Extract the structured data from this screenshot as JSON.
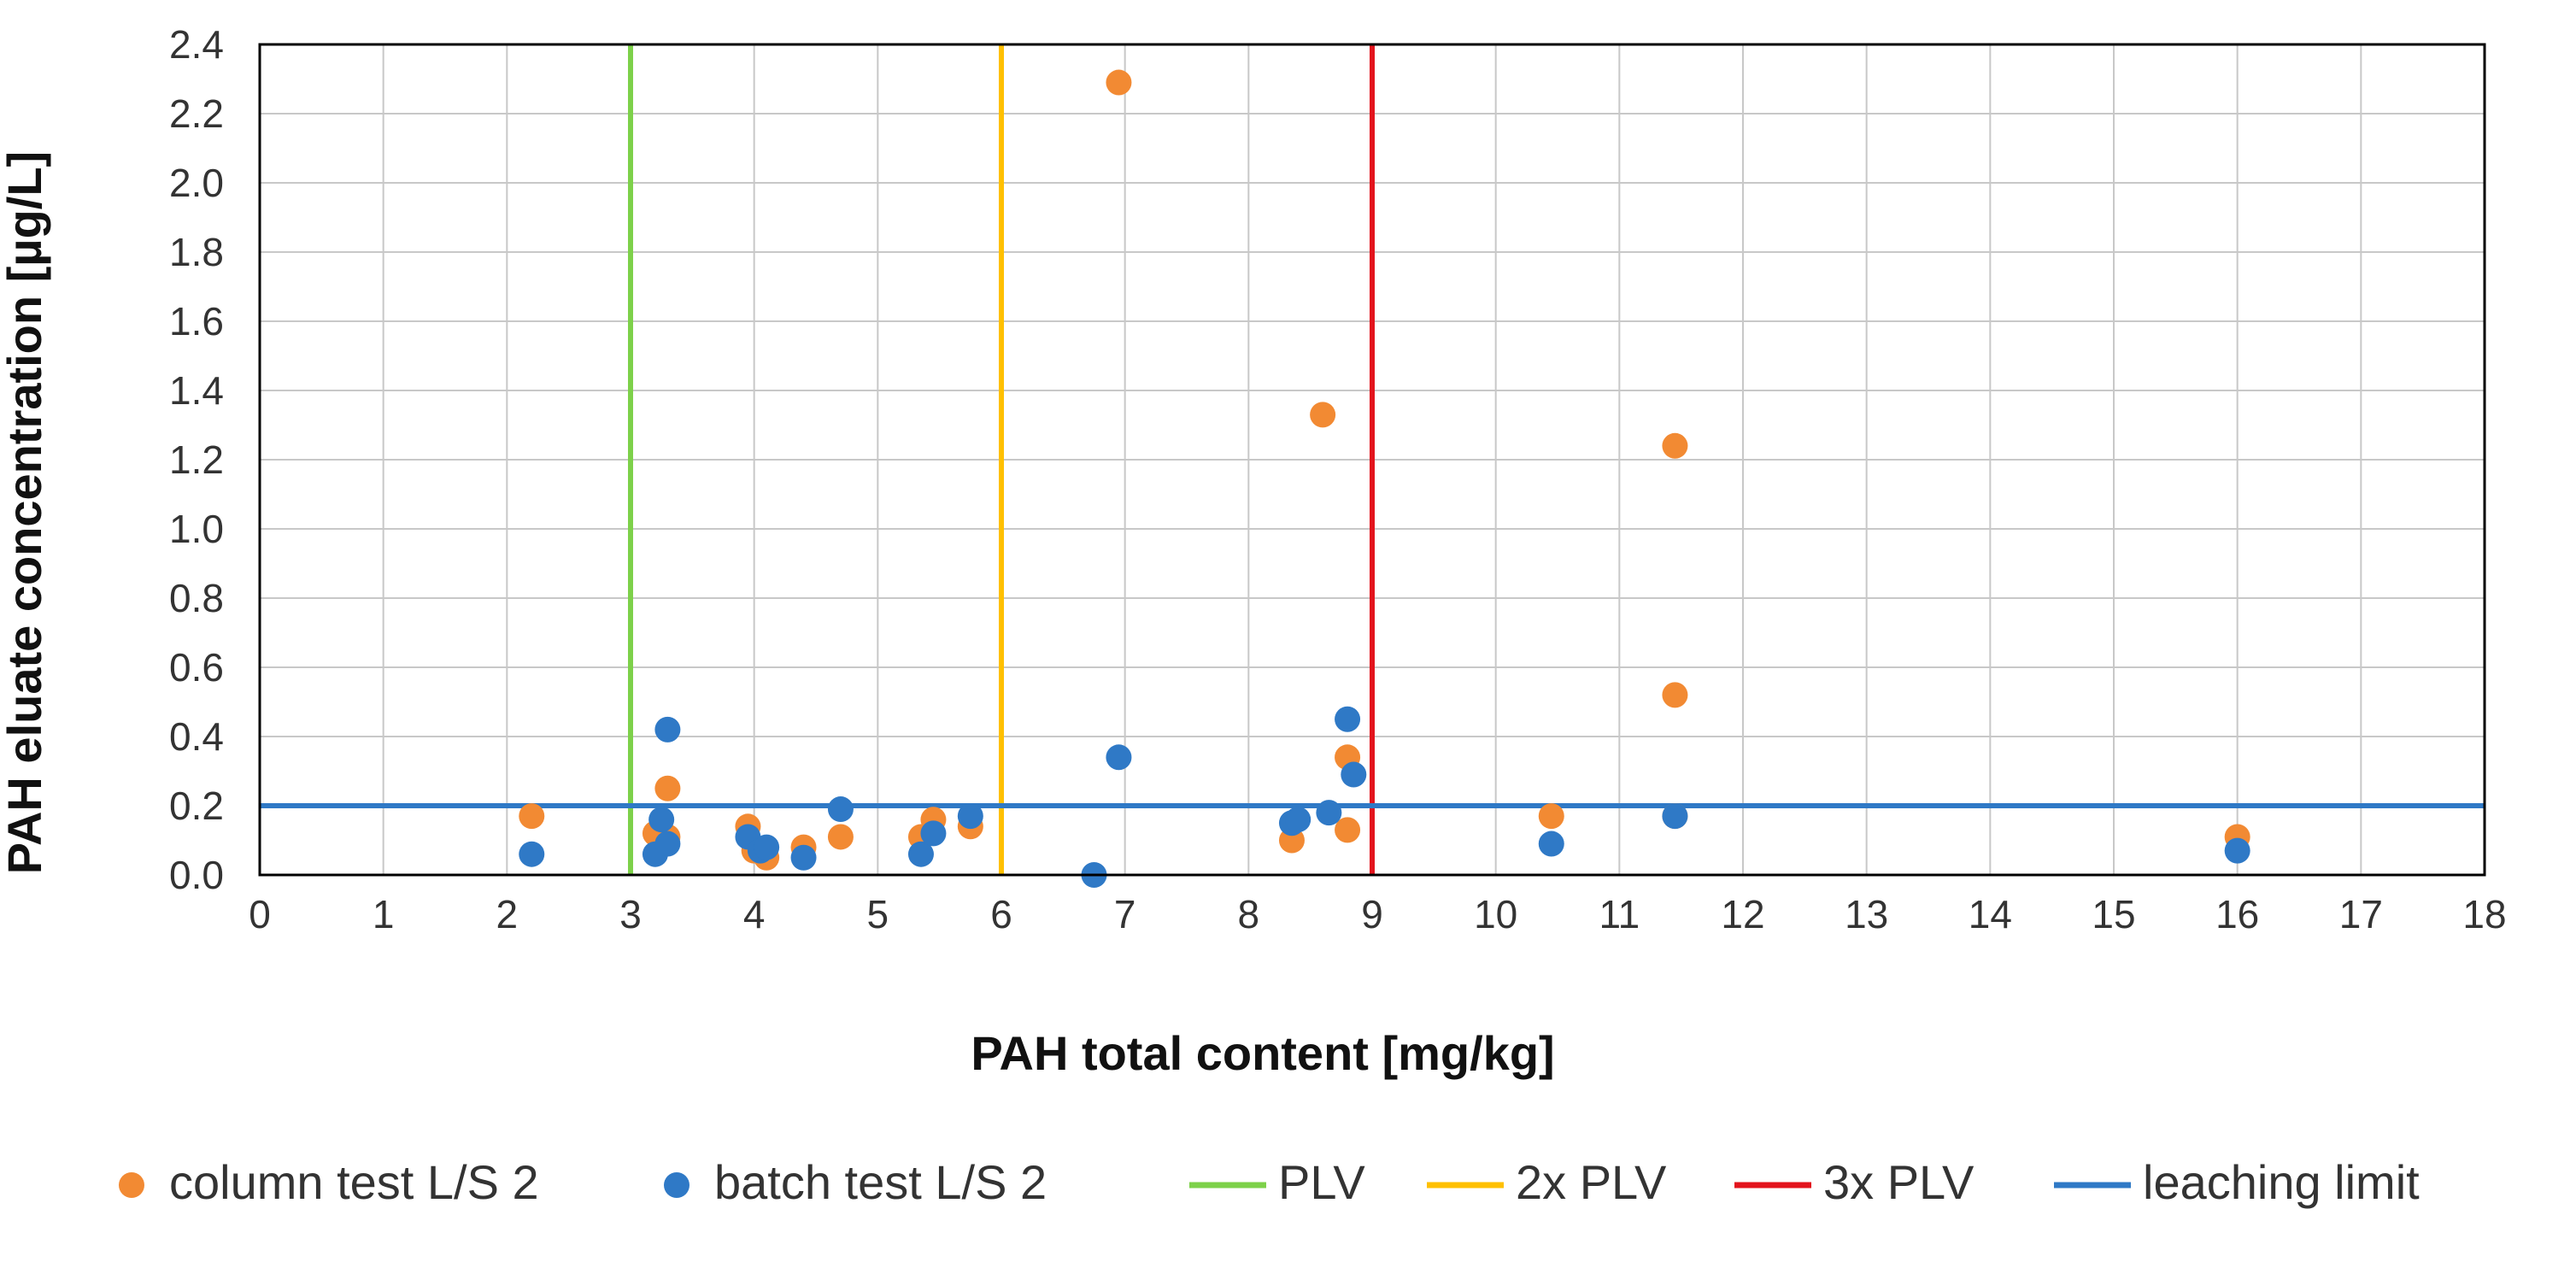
{
  "chart_data": {
    "type": "scatter",
    "title": "",
    "xlabel": "PAH total content [mg/kg]",
    "ylabel": "PAH eluate concentration [µg/L]",
    "xlim": [
      0,
      18
    ],
    "ylim": [
      0,
      2.4
    ],
    "x_ticks": [
      "0",
      "1",
      "2",
      "3",
      "4",
      "5",
      "6",
      "7",
      "8",
      "9",
      "10",
      "11",
      "12",
      "13",
      "14",
      "15",
      "16",
      "17",
      "18"
    ],
    "y_ticks": [
      "0.0",
      "0.2",
      "0.4",
      "0.6",
      "0.8",
      "1.0",
      "1.2",
      "1.4",
      "1.6",
      "1.8",
      "2.0",
      "2.2",
      "2.4"
    ],
    "grid": true,
    "legend_position": "bottom",
    "colors": {
      "column": "#f28a33",
      "batch": "#2f79c6",
      "plv": "#7dd14a",
      "plv2": "#ffc000",
      "plv3": "#e3141d",
      "leaching": "#2f79c6",
      "grid": "#c8c8c8"
    },
    "series": [
      {
        "name": "column test L/S 2",
        "kind": "scatter",
        "color_key": "column",
        "points": [
          [
            2.2,
            0.17
          ],
          [
            3.2,
            0.12
          ],
          [
            3.3,
            0.11
          ],
          [
            3.3,
            0.25
          ],
          [
            3.95,
            0.14
          ],
          [
            4.0,
            0.07
          ],
          [
            4.1,
            0.05
          ],
          [
            4.4,
            0.08
          ],
          [
            4.7,
            0.11
          ],
          [
            5.35,
            0.11
          ],
          [
            5.45,
            0.16
          ],
          [
            5.75,
            0.14
          ],
          [
            6.95,
            2.29
          ],
          [
            8.35,
            0.1
          ],
          [
            8.6,
            1.33
          ],
          [
            8.8,
            0.34
          ],
          [
            8.8,
            0.13
          ],
          [
            10.45,
            0.17
          ],
          [
            11.45,
            1.24
          ],
          [
            11.45,
            0.52
          ],
          [
            11.45,
            0.17
          ],
          [
            16.0,
            0.11
          ]
        ]
      },
      {
        "name": "batch test L/S 2",
        "kind": "scatter",
        "color_key": "batch",
        "points": [
          [
            2.2,
            0.06
          ],
          [
            3.2,
            0.06
          ],
          [
            3.25,
            0.16
          ],
          [
            3.3,
            0.09
          ],
          [
            3.3,
            0.42
          ],
          [
            3.95,
            0.11
          ],
          [
            4.05,
            0.07
          ],
          [
            4.1,
            0.08
          ],
          [
            4.4,
            0.05
          ],
          [
            4.7,
            0.19
          ],
          [
            5.35,
            0.06
          ],
          [
            5.45,
            0.12
          ],
          [
            5.75,
            0.17
          ],
          [
            6.75,
            0.0
          ],
          [
            6.95,
            0.34
          ],
          [
            8.35,
            0.15
          ],
          [
            8.4,
            0.16
          ],
          [
            8.65,
            0.18
          ],
          [
            8.8,
            0.45
          ],
          [
            8.85,
            0.29
          ],
          [
            10.45,
            0.09
          ],
          [
            11.45,
            0.17
          ],
          [
            16.0,
            0.07
          ]
        ]
      },
      {
        "name": "PLV",
        "kind": "vline",
        "color_key": "plv",
        "x": 3
      },
      {
        "name": "2x PLV",
        "kind": "vline",
        "color_key": "plv2",
        "x": 6
      },
      {
        "name": "3x PLV",
        "kind": "vline",
        "color_key": "plv3",
        "x": 9
      },
      {
        "name": "leaching limit",
        "kind": "hline",
        "color_key": "leaching",
        "y": 0.2
      }
    ]
  }
}
